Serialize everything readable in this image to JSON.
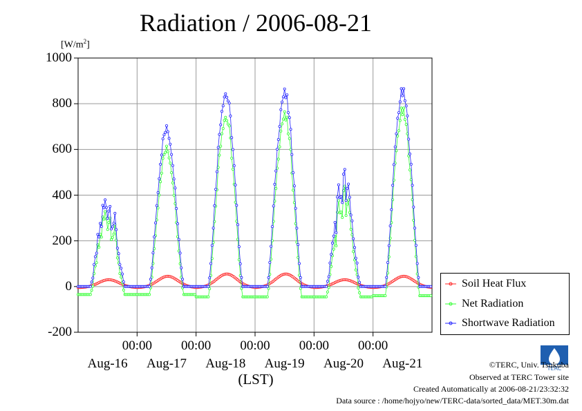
{
  "title": "Radiation / 2006-08-21",
  "unit": "[W/m",
  "unit_sup": "2",
  "unit_close": "]",
  "xlabel": "(LST)",
  "time_tick": "00:00",
  "credits": {
    "copyright": "©TERC, Univ. Tsukuba",
    "observed": "Observed at TERC Tower site",
    "created": "Created Automatically at 2006-08-21/23:32:32",
    "source": "Data source : /home/hojyo/new/TERC-data/sorted_data/MET.30m.dat"
  },
  "logo_text": "TERC",
  "colors": {
    "soil": "#ff2020",
    "net": "#30ff30",
    "sw": "#2020ff",
    "grid": "#999999"
  },
  "chart_data": {
    "type": "line",
    "title": "Radiation / 2006-08-21",
    "ylabel": "[W/m2]",
    "xlabel": "(LST)",
    "ylim": [
      -200,
      1000
    ],
    "yticks": [
      "1000",
      "800",
      "600",
      "400",
      "200",
      "0",
      "-200"
    ],
    "xlim_days": [
      "Aug-16 00:00",
      "Aug-22 00:00"
    ],
    "days": [
      "Aug-16",
      "Aug-17",
      "Aug-18",
      "Aug-19",
      "Aug-20",
      "Aug-21"
    ],
    "grid": true,
    "legend_position": "bottom-right",
    "series": [
      {
        "name": "Soil Heat Flux",
        "daily_profile": {
          "Aug-16": {
            "night": -5,
            "peak": 30
          },
          "Aug-17": {
            "night": -5,
            "peak": 45
          },
          "Aug-18": {
            "night": -5,
            "peak": 55
          },
          "Aug-19": {
            "night": -5,
            "peak": 55
          },
          "Aug-20": {
            "night": -5,
            "peak": 30
          },
          "Aug-21": {
            "night": -5,
            "peak": 45
          }
        }
      },
      {
        "name": "Net Radiation",
        "daily_profile": {
          "Aug-16": {
            "night": -35,
            "peak": 400
          },
          "Aug-17": {
            "night": -35,
            "peak": 620
          },
          "Aug-18": {
            "night": -45,
            "peak": 770
          },
          "Aug-19": {
            "night": -45,
            "peak": 770
          },
          "Aug-20": {
            "night": -45,
            "peak": 470
          },
          "Aug-21": {
            "night": -40,
            "peak": 790
          }
        }
      },
      {
        "name": "Shortwave Radiation",
        "daily_profile": {
          "Aug-16": {
            "night": 0,
            "peak": 455
          },
          "Aug-17": {
            "night": 0,
            "peak": 710
          },
          "Aug-18": {
            "night": 0,
            "peak": 875
          },
          "Aug-19": {
            "night": 0,
            "peak": 870
          },
          "Aug-20": {
            "night": 0,
            "peak": 545
          },
          "Aug-21": {
            "night": 0,
            "peak": 875
          }
        }
      }
    ]
  }
}
